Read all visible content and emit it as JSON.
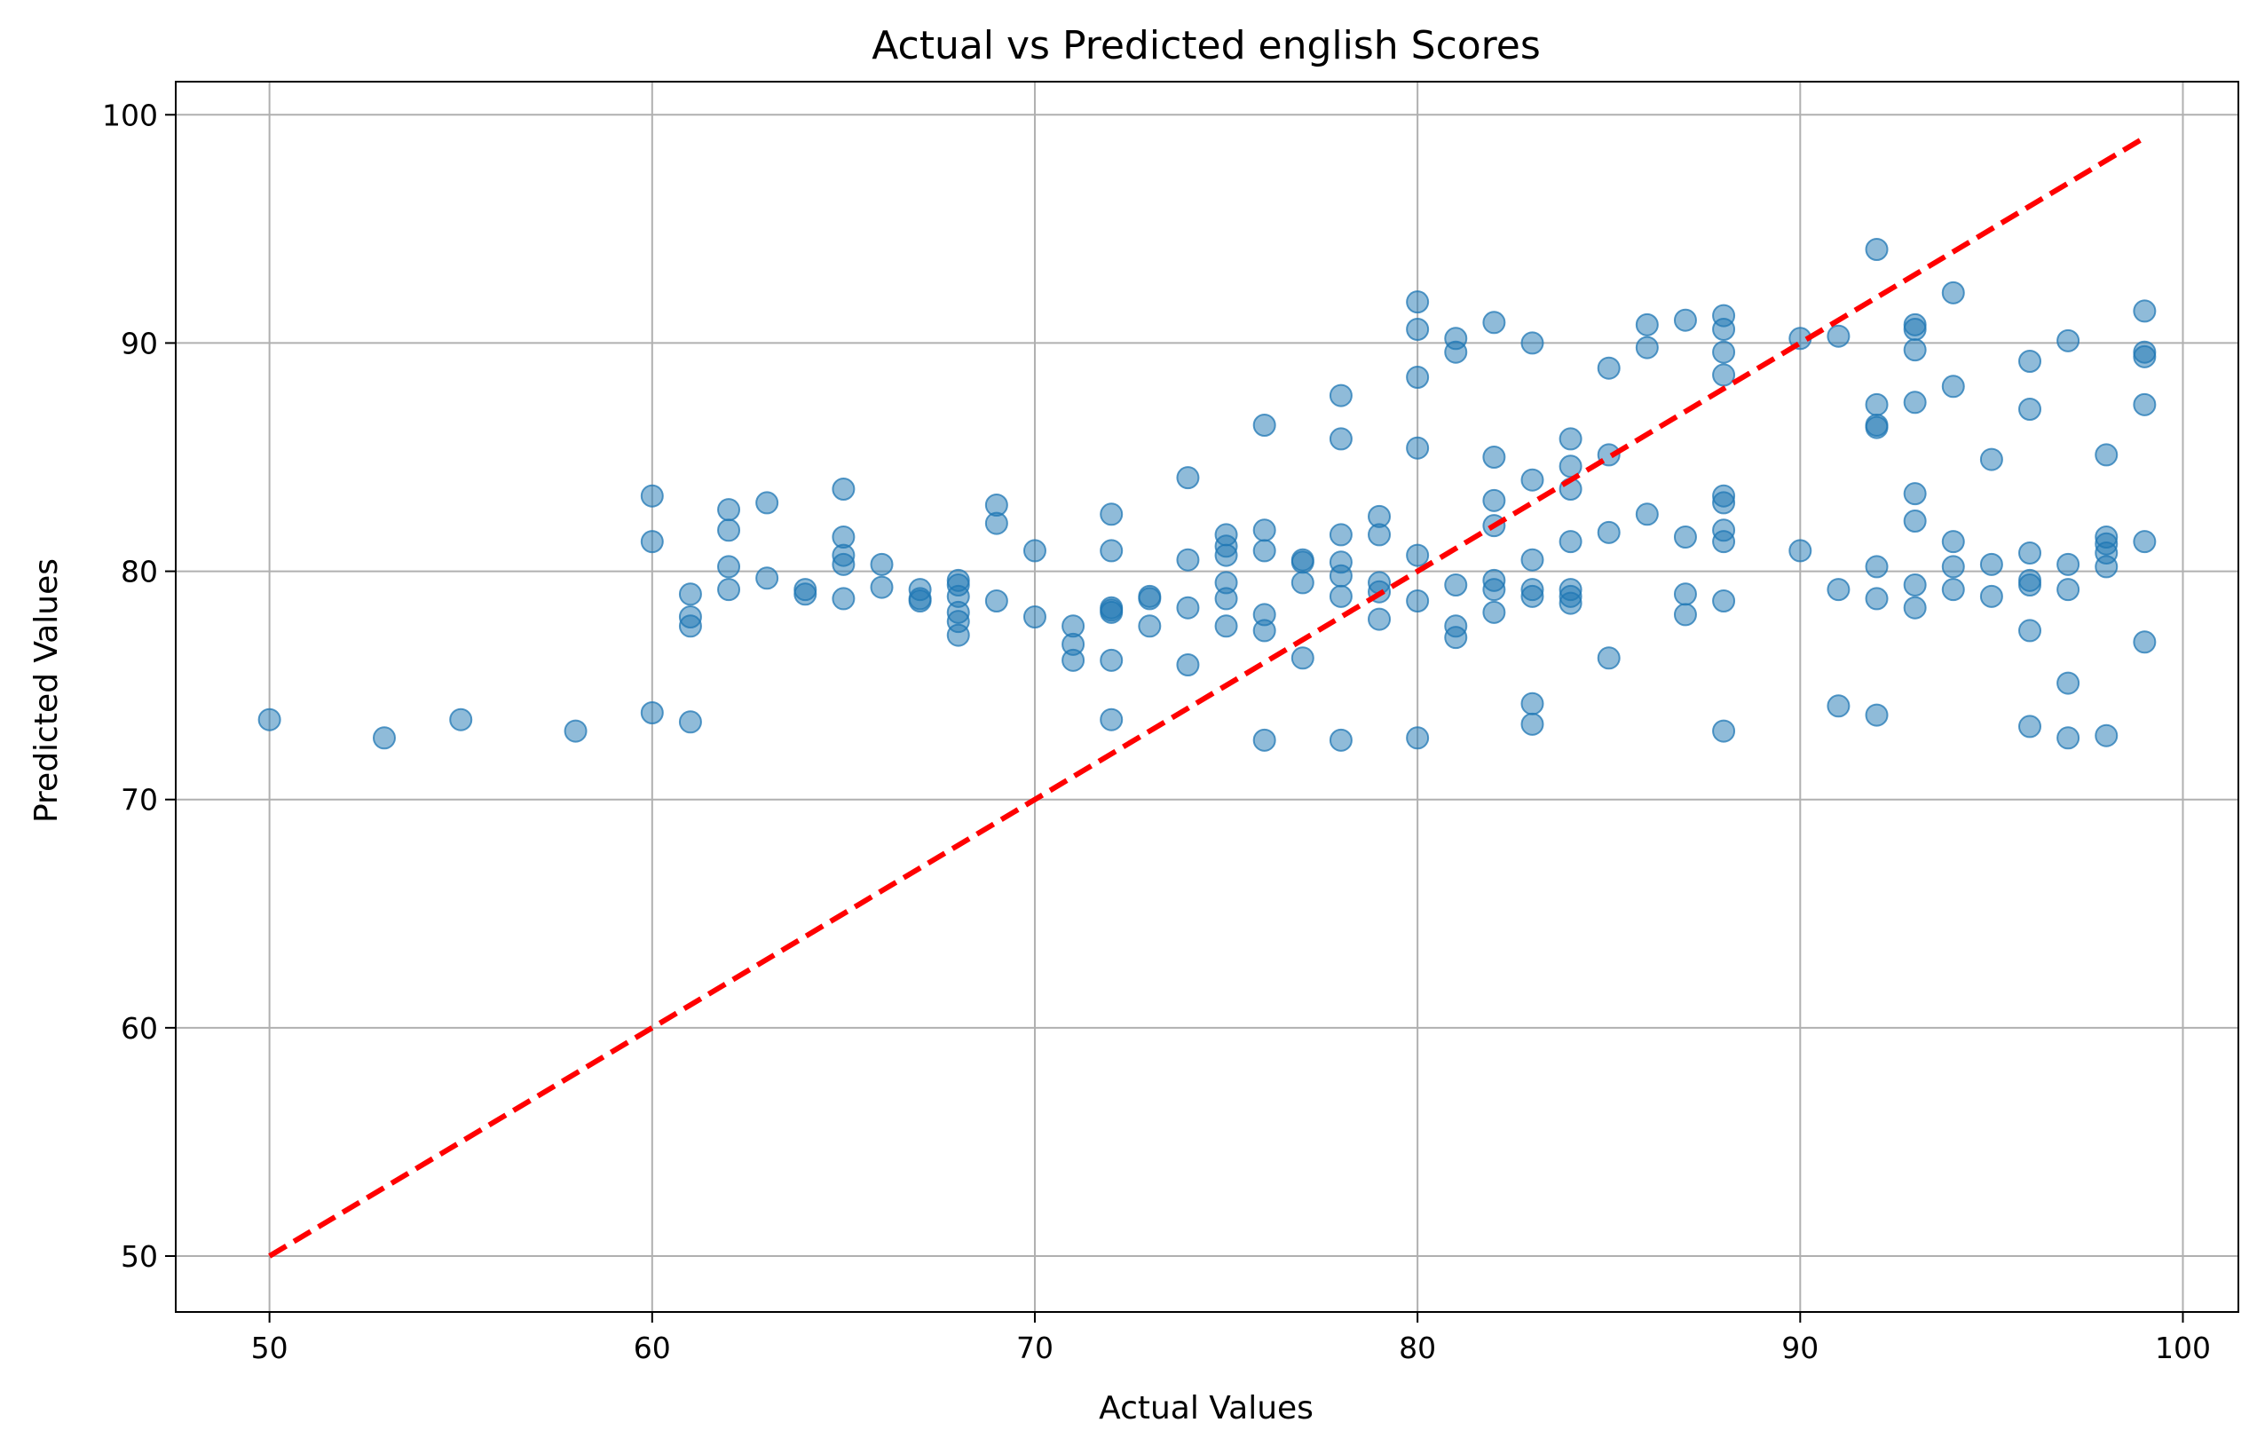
{
  "chart_data": {
    "type": "scatter",
    "title": "Actual vs Predicted english Scores",
    "xlabel": "Actual Values",
    "ylabel": "Predicted Values",
    "xlim": [
      47.55,
      101.45
    ],
    "ylim": [
      47.55,
      101.45
    ],
    "xticks": [
      50,
      60,
      70,
      80,
      90,
      100
    ],
    "yticks": [
      50,
      60,
      70,
      80,
      90,
      100
    ],
    "grid": true,
    "point_color": "#1f77b4",
    "point_alpha": 0.5,
    "reference_line": {
      "style": "dashed",
      "color": "#ff0000",
      "x": [
        50,
        99
      ],
      "y": [
        50,
        99
      ]
    },
    "points": [
      [
        50,
        73.5
      ],
      [
        53,
        72.7
      ],
      [
        55,
        73.5
      ],
      [
        58,
        73.0
      ],
      [
        60,
        83.3
      ],
      [
        60,
        81.3
      ],
      [
        60,
        73.8
      ],
      [
        61,
        79.0
      ],
      [
        61,
        78.0
      ],
      [
        61,
        77.6
      ],
      [
        61,
        73.4
      ],
      [
        62,
        82.7
      ],
      [
        62,
        81.8
      ],
      [
        62,
        80.2
      ],
      [
        62,
        79.2
      ],
      [
        63,
        83.0
      ],
      [
        63,
        79.7
      ],
      [
        64,
        79.2
      ],
      [
        64,
        79.0
      ],
      [
        65,
        83.6
      ],
      [
        65,
        81.5
      ],
      [
        65,
        80.7
      ],
      [
        65,
        80.3
      ],
      [
        65,
        78.8
      ],
      [
        66,
        80.3
      ],
      [
        66,
        79.3
      ],
      [
        67,
        79.2
      ],
      [
        67,
        78.8
      ],
      [
        67,
        78.7
      ],
      [
        68,
        79.6
      ],
      [
        68,
        79.4
      ],
      [
        68,
        78.9
      ],
      [
        68,
        78.2
      ],
      [
        68,
        77.8
      ],
      [
        68,
        77.2
      ],
      [
        69,
        82.9
      ],
      [
        69,
        82.1
      ],
      [
        69,
        78.7
      ],
      [
        70,
        80.9
      ],
      [
        70,
        78.0
      ],
      [
        71,
        77.6
      ],
      [
        71,
        76.8
      ],
      [
        71,
        76.1
      ],
      [
        72,
        82.5
      ],
      [
        72,
        80.9
      ],
      [
        72,
        78.4
      ],
      [
        72,
        78.3
      ],
      [
        72,
        78.2
      ],
      [
        72,
        76.1
      ],
      [
        72,
        73.5
      ],
      [
        73,
        78.9
      ],
      [
        73,
        78.8
      ],
      [
        73,
        77.6
      ],
      [
        74,
        84.1
      ],
      [
        74,
        80.5
      ],
      [
        74,
        78.4
      ],
      [
        74,
        75.9
      ],
      [
        75,
        81.6
      ],
      [
        75,
        81.1
      ],
      [
        75,
        80.7
      ],
      [
        75,
        79.5
      ],
      [
        75,
        78.8
      ],
      [
        75,
        77.6
      ],
      [
        76,
        86.4
      ],
      [
        76,
        81.8
      ],
      [
        76,
        80.9
      ],
      [
        76,
        78.1
      ],
      [
        76,
        77.4
      ],
      [
        76,
        72.6
      ],
      [
        77,
        80.5
      ],
      [
        77,
        80.4
      ],
      [
        77,
        79.5
      ],
      [
        77,
        76.2
      ],
      [
        78,
        87.7
      ],
      [
        78,
        85.8
      ],
      [
        78,
        81.6
      ],
      [
        78,
        80.4
      ],
      [
        78,
        79.8
      ],
      [
        78,
        78.9
      ],
      [
        78,
        72.6
      ],
      [
        79,
        82.4
      ],
      [
        79,
        81.6
      ],
      [
        79,
        79.5
      ],
      [
        79,
        79.1
      ],
      [
        79,
        77.9
      ],
      [
        80,
        91.8
      ],
      [
        80,
        90.6
      ],
      [
        80,
        88.5
      ],
      [
        80,
        85.4
      ],
      [
        80,
        80.7
      ],
      [
        80,
        78.7
      ],
      [
        80,
        72.7
      ],
      [
        81,
        90.2
      ],
      [
        81,
        89.6
      ],
      [
        81,
        79.4
      ],
      [
        81,
        77.6
      ],
      [
        81,
        77.1
      ],
      [
        82,
        90.9
      ],
      [
        82,
        85.0
      ],
      [
        82,
        83.1
      ],
      [
        82,
        82.0
      ],
      [
        82,
        79.6
      ],
      [
        82,
        79.2
      ],
      [
        82,
        78.2
      ],
      [
        83,
        90.0
      ],
      [
        83,
        84.0
      ],
      [
        83,
        80.5
      ],
      [
        83,
        79.2
      ],
      [
        83,
        78.9
      ],
      [
        83,
        74.2
      ],
      [
        83,
        73.3
      ],
      [
        84,
        85.8
      ],
      [
        84,
        84.6
      ],
      [
        84,
        83.6
      ],
      [
        84,
        81.3
      ],
      [
        84,
        79.2
      ],
      [
        84,
        78.9
      ],
      [
        84,
        78.6
      ],
      [
        85,
        88.9
      ],
      [
        85,
        85.1
      ],
      [
        85,
        81.7
      ],
      [
        85,
        76.2
      ],
      [
        86,
        90.8
      ],
      [
        86,
        89.8
      ],
      [
        86,
        82.5
      ],
      [
        87,
        91.0
      ],
      [
        87,
        81.5
      ],
      [
        87,
        79.0
      ],
      [
        87,
        78.1
      ],
      [
        88,
        91.2
      ],
      [
        88,
        90.6
      ],
      [
        88,
        89.6
      ],
      [
        88,
        88.6
      ],
      [
        88,
        83.3
      ],
      [
        88,
        83.0
      ],
      [
        88,
        81.8
      ],
      [
        88,
        81.3
      ],
      [
        88,
        78.7
      ],
      [
        88,
        73.0
      ],
      [
        90,
        90.2
      ],
      [
        90,
        80.9
      ],
      [
        91,
        90.3
      ],
      [
        91,
        79.2
      ],
      [
        91,
        74.1
      ],
      [
        92,
        94.1
      ],
      [
        92,
        87.3
      ],
      [
        92,
        86.4
      ],
      [
        92,
        86.3
      ],
      [
        92,
        80.2
      ],
      [
        92,
        78.8
      ],
      [
        92,
        73.7
      ],
      [
        93,
        90.8
      ],
      [
        93,
        90.6
      ],
      [
        93,
        89.7
      ],
      [
        93,
        87.4
      ],
      [
        93,
        83.4
      ],
      [
        93,
        82.2
      ],
      [
        93,
        79.4
      ],
      [
        93,
        78.4
      ],
      [
        94,
        92.2
      ],
      [
        94,
        88.1
      ],
      [
        94,
        81.3
      ],
      [
        94,
        80.2
      ],
      [
        94,
        79.2
      ],
      [
        95,
        84.9
      ],
      [
        95,
        80.3
      ],
      [
        95,
        78.9
      ],
      [
        96,
        89.2
      ],
      [
        96,
        87.1
      ],
      [
        96,
        80.8
      ],
      [
        96,
        79.6
      ],
      [
        96,
        79.4
      ],
      [
        96,
        77.4
      ],
      [
        96,
        73.2
      ],
      [
        97,
        90.1
      ],
      [
        97,
        80.3
      ],
      [
        97,
        79.2
      ],
      [
        97,
        75.1
      ],
      [
        97,
        72.7
      ],
      [
        98,
        85.1
      ],
      [
        98,
        81.5
      ],
      [
        98,
        81.2
      ],
      [
        98,
        80.8
      ],
      [
        98,
        80.2
      ],
      [
        98,
        72.8
      ],
      [
        99,
        91.4
      ],
      [
        99,
        89.6
      ],
      [
        99,
        89.4
      ],
      [
        99,
        87.3
      ],
      [
        99,
        81.3
      ],
      [
        99,
        76.9
      ]
    ]
  }
}
